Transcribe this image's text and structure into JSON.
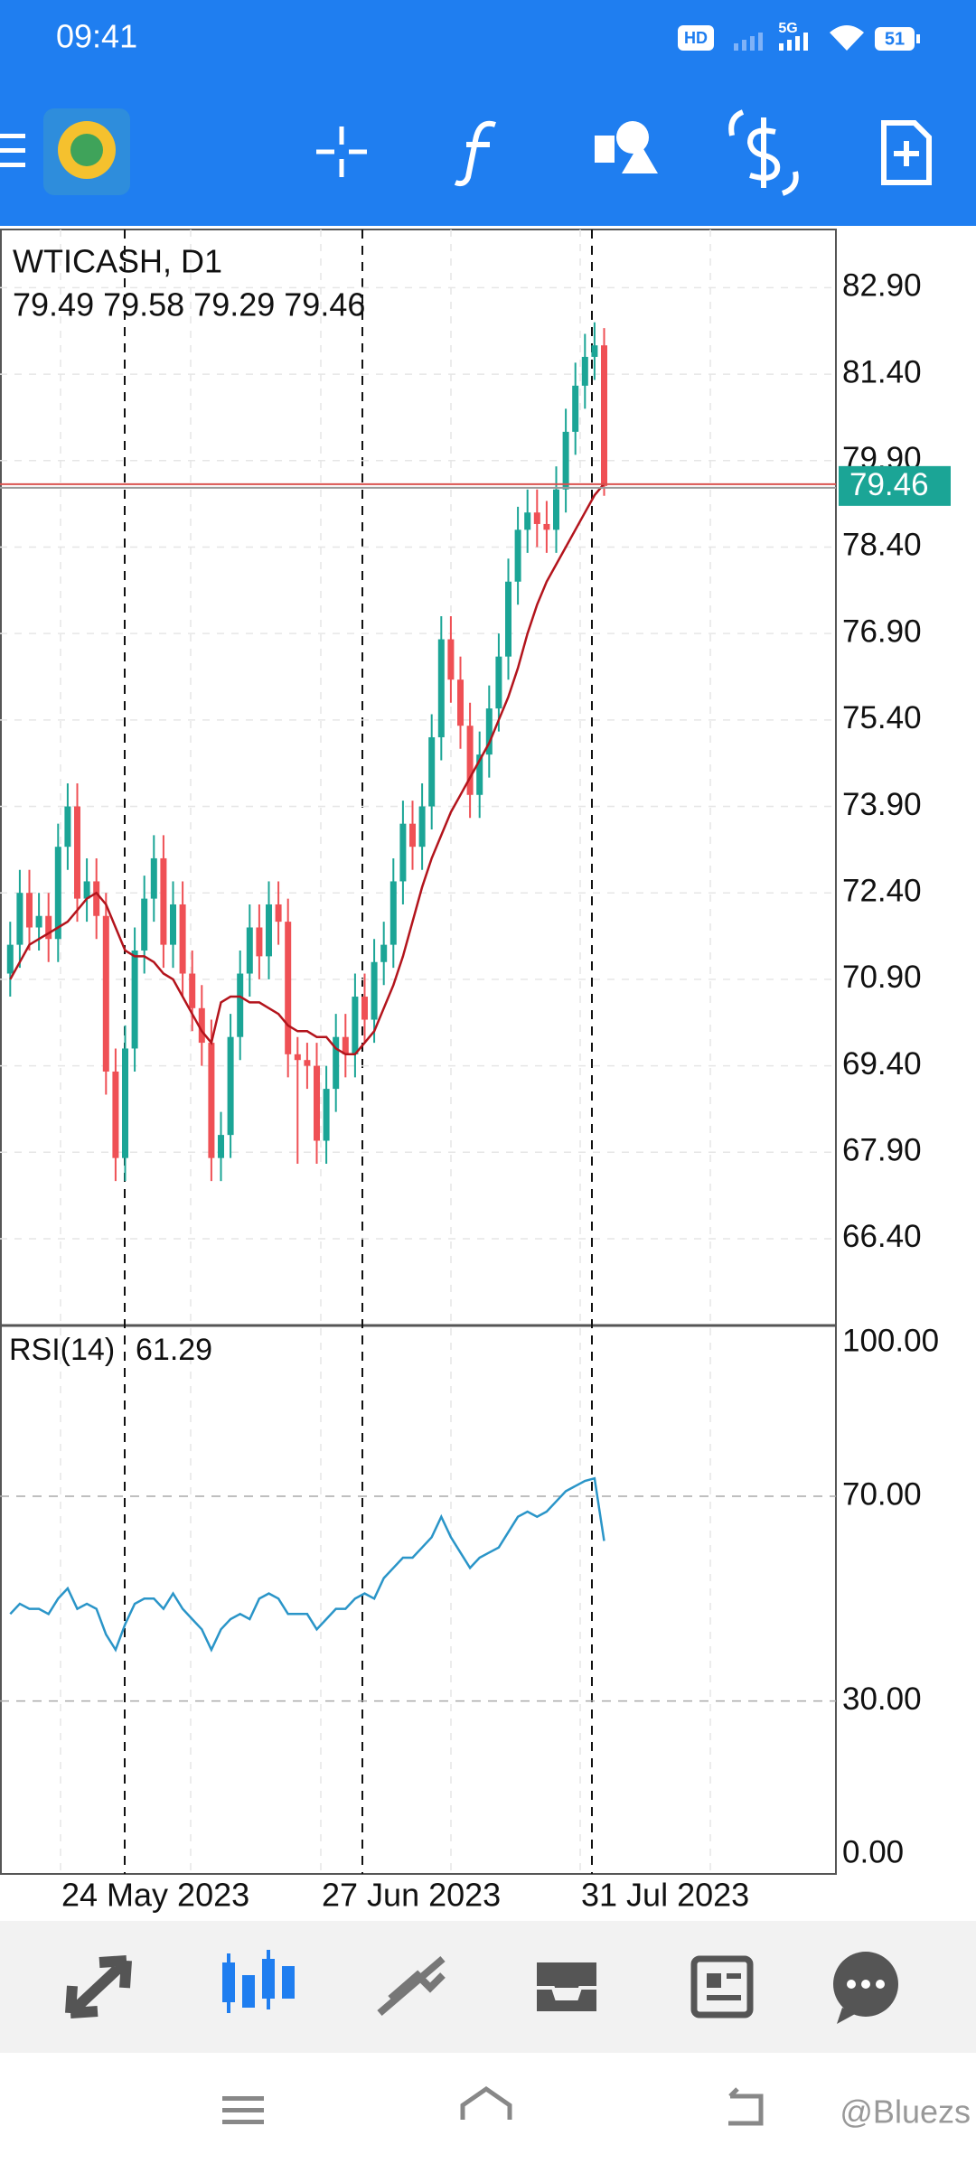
{
  "status_bar": {
    "time": "09:41",
    "hd": "HD",
    "network": "5G",
    "battery": "51"
  },
  "chart_data": {
    "type": "candlestick",
    "symbol": "WTICASH, D1",
    "ohlc": "79.49 79.58 79.29 79.46",
    "candles": {
      "open": [
        71.0,
        71.5,
        72.4,
        71.8,
        72.0,
        71.6,
        73.2,
        73.9,
        72.3,
        72.6,
        72.0,
        69.3,
        67.8,
        69.7,
        71.4,
        72.3,
        73.0,
        71.5,
        72.2,
        71.0,
        70.4,
        69.8,
        67.8,
        68.2,
        69.9,
        71.0,
        71.8,
        71.3,
        72.2,
        71.9,
        69.6,
        69.5,
        69.4,
        68.1,
        69.0,
        69.9,
        69.6,
        70.6,
        70.2,
        71.2,
        71.5,
        72.6,
        73.6,
        73.2,
        73.9,
        75.1,
        76.8,
        76.1,
        75.3,
        74.1,
        74.8,
        75.6,
        76.5,
        77.8,
        78.7,
        79.0,
        78.8,
        78.7,
        79.4,
        80.4,
        81.2,
        81.7,
        81.9
      ],
      "high": [
        71.9,
        72.8,
        72.8,
        72.4,
        72.4,
        73.6,
        74.3,
        74.3,
        73.0,
        73.0,
        72.4,
        69.7,
        70.1,
        71.8,
        72.7,
        73.4,
        73.4,
        72.6,
        72.6,
        71.4,
        70.8,
        70.2,
        68.6,
        70.3,
        71.4,
        72.2,
        72.2,
        72.6,
        72.6,
        72.3,
        69.9,
        69.8,
        69.8,
        69.4,
        70.3,
        70.3,
        71.0,
        71.0,
        71.6,
        71.9,
        73.0,
        74.0,
        74.0,
        74.3,
        75.5,
        77.2,
        77.2,
        76.5,
        75.7,
        75.2,
        76.0,
        76.9,
        78.2,
        79.1,
        79.4,
        79.4,
        79.2,
        79.8,
        80.8,
        81.6,
        82.1,
        82.3,
        82.2
      ],
      "low": [
        70.6,
        71.1,
        71.4,
        71.4,
        71.2,
        71.2,
        72.8,
        71.9,
        71.9,
        71.6,
        68.9,
        67.4,
        67.4,
        69.3,
        71.0,
        71.9,
        71.1,
        71.1,
        70.6,
        70.0,
        69.4,
        67.4,
        67.4,
        67.8,
        69.5,
        70.6,
        70.9,
        70.9,
        71.5,
        69.2,
        67.7,
        69.0,
        67.7,
        67.7,
        68.6,
        69.2,
        69.2,
        69.8,
        69.8,
        70.8,
        71.1,
        72.2,
        72.8,
        72.8,
        73.5,
        74.7,
        75.7,
        74.9,
        73.7,
        73.7,
        74.4,
        75.2,
        76.1,
        77.4,
        78.3,
        78.4,
        78.3,
        78.3,
        79.0,
        80.0,
        80.8,
        81.3,
        79.29
      ],
      "close": [
        71.5,
        72.4,
        71.8,
        72.0,
        71.6,
        73.2,
        73.9,
        72.3,
        72.6,
        72.0,
        69.3,
        67.8,
        69.7,
        71.4,
        72.3,
        73.0,
        71.5,
        72.2,
        71.0,
        70.4,
        69.8,
        67.8,
        68.2,
        69.9,
        71.0,
        71.8,
        71.3,
        72.2,
        71.9,
        69.6,
        69.5,
        69.4,
        68.1,
        69.0,
        69.9,
        69.6,
        70.6,
        70.2,
        71.2,
        71.5,
        72.6,
        73.6,
        73.2,
        73.9,
        75.1,
        76.8,
        76.1,
        75.3,
        74.1,
        74.8,
        75.6,
        76.5,
        77.8,
        78.7,
        79.0,
        78.8,
        78.7,
        79.4,
        80.4,
        81.2,
        81.7,
        81.9,
        79.46
      ]
    },
    "ma": [
      70.9,
      71.2,
      71.5,
      71.6,
      71.7,
      71.8,
      71.9,
      72.1,
      72.3,
      72.4,
      72.2,
      71.8,
      71.4,
      71.3,
      71.3,
      71.2,
      71.0,
      70.9,
      70.6,
      70.3,
      70.0,
      69.8,
      70.5,
      70.6,
      70.6,
      70.5,
      70.5,
      70.4,
      70.3,
      70.1,
      70.0,
      70.0,
      69.9,
      69.9,
      69.7,
      69.6,
      69.6,
      69.8,
      70.0,
      70.4,
      70.8,
      71.3,
      71.9,
      72.5,
      73.0,
      73.4,
      73.8,
      74.1,
      74.4,
      74.7,
      75.0,
      75.4,
      75.8,
      76.3,
      76.9,
      77.4,
      77.8,
      78.1,
      78.4,
      78.7,
      79.0,
      79.3,
      79.5
    ],
    "ylim": [
      64.91,
      83.91
    ],
    "yticks": [
      {
        "value": 82.9,
        "label": "82.90"
      },
      {
        "value": 81.4,
        "label": "81.40"
      },
      {
        "value": 79.9,
        "label": "79.90"
      },
      {
        "value": 78.4,
        "label": "78.40"
      },
      {
        "value": 76.9,
        "label": "76.90"
      },
      {
        "value": 75.4,
        "label": "75.40"
      },
      {
        "value": 73.9,
        "label": "73.90"
      },
      {
        "value": 72.4,
        "label": "72.40"
      },
      {
        "value": 70.9,
        "label": "70.90"
      },
      {
        "value": 69.4,
        "label": "69.40"
      },
      {
        "value": 67.9,
        "label": "67.90"
      },
      {
        "value": 66.4,
        "label": "66.40"
      }
    ],
    "up_color": "#1ba596",
    "down_color": "#ef5055",
    "ma_color": "#b3141c",
    "x_labels": [
      "24 May 2023",
      "27 Jun 2023",
      "31 Jul 2023"
    ],
    "rsi": {
      "title": "RSI(14)",
      "color": "#2a95c8",
      "ylim": [
        -3.8,
        103.2
      ],
      "yticks": [
        {
          "value": 100,
          "label": "100.00"
        },
        {
          "value": 70,
          "label": "70.00"
        },
        {
          "value": 30,
          "label": "30.00"
        },
        {
          "value": 0,
          "label": "0.00"
        }
      ],
      "values": [
        47,
        49,
        48,
        48,
        47,
        50,
        52,
        48,
        49,
        48,
        43,
        40,
        45,
        49,
        50,
        50,
        48,
        51,
        48,
        46,
        44,
        40,
        44,
        46,
        47,
        46,
        50,
        51,
        50,
        47,
        47,
        47,
        44,
        46,
        48,
        48,
        50,
        51,
        50,
        54,
        56,
        58,
        58,
        60,
        62,
        66,
        62,
        59,
        56,
        58,
        59,
        60,
        63,
        66,
        67,
        66,
        67,
        69,
        71,
        72,
        73,
        73.5,
        61.29
      ]
    }
  },
  "watermark": "@Bluezs"
}
